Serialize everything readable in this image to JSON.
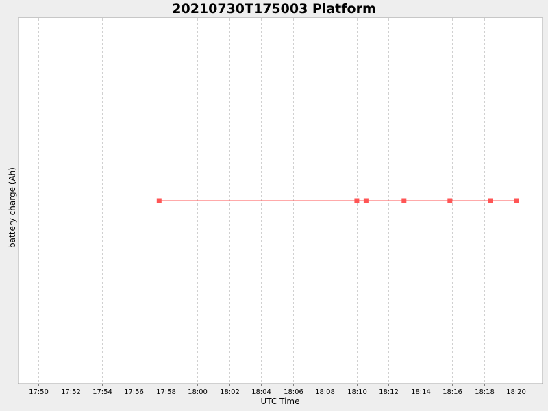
{
  "chart_data": {
    "type": "line",
    "title": "20210730T175003 Platform",
    "xlabel": "UTC Time",
    "ylabel": "battery charge (Ah)",
    "x_ticks": [
      "17:50",
      "17:52",
      "17:54",
      "17:56",
      "17:58",
      "18:00",
      "18:02",
      "18:04",
      "18:06",
      "18:08",
      "18:10",
      "18:12",
      "18:14",
      "18:16",
      "18:18",
      "18:20"
    ],
    "xlim": [
      "17:48:45",
      "18:21:40"
    ],
    "grid": true,
    "legend": "none",
    "series": [
      {
        "color": "#ff5555",
        "marker": "square",
        "x": [
          "17:57:35",
          "18:10:00",
          "18:10:35",
          "18:12:58",
          "18:15:51",
          "18:18:24",
          "18:20:02"
        ],
        "y": [
          0,
          0,
          0,
          0,
          0,
          0,
          0
        ]
      }
    ]
  }
}
